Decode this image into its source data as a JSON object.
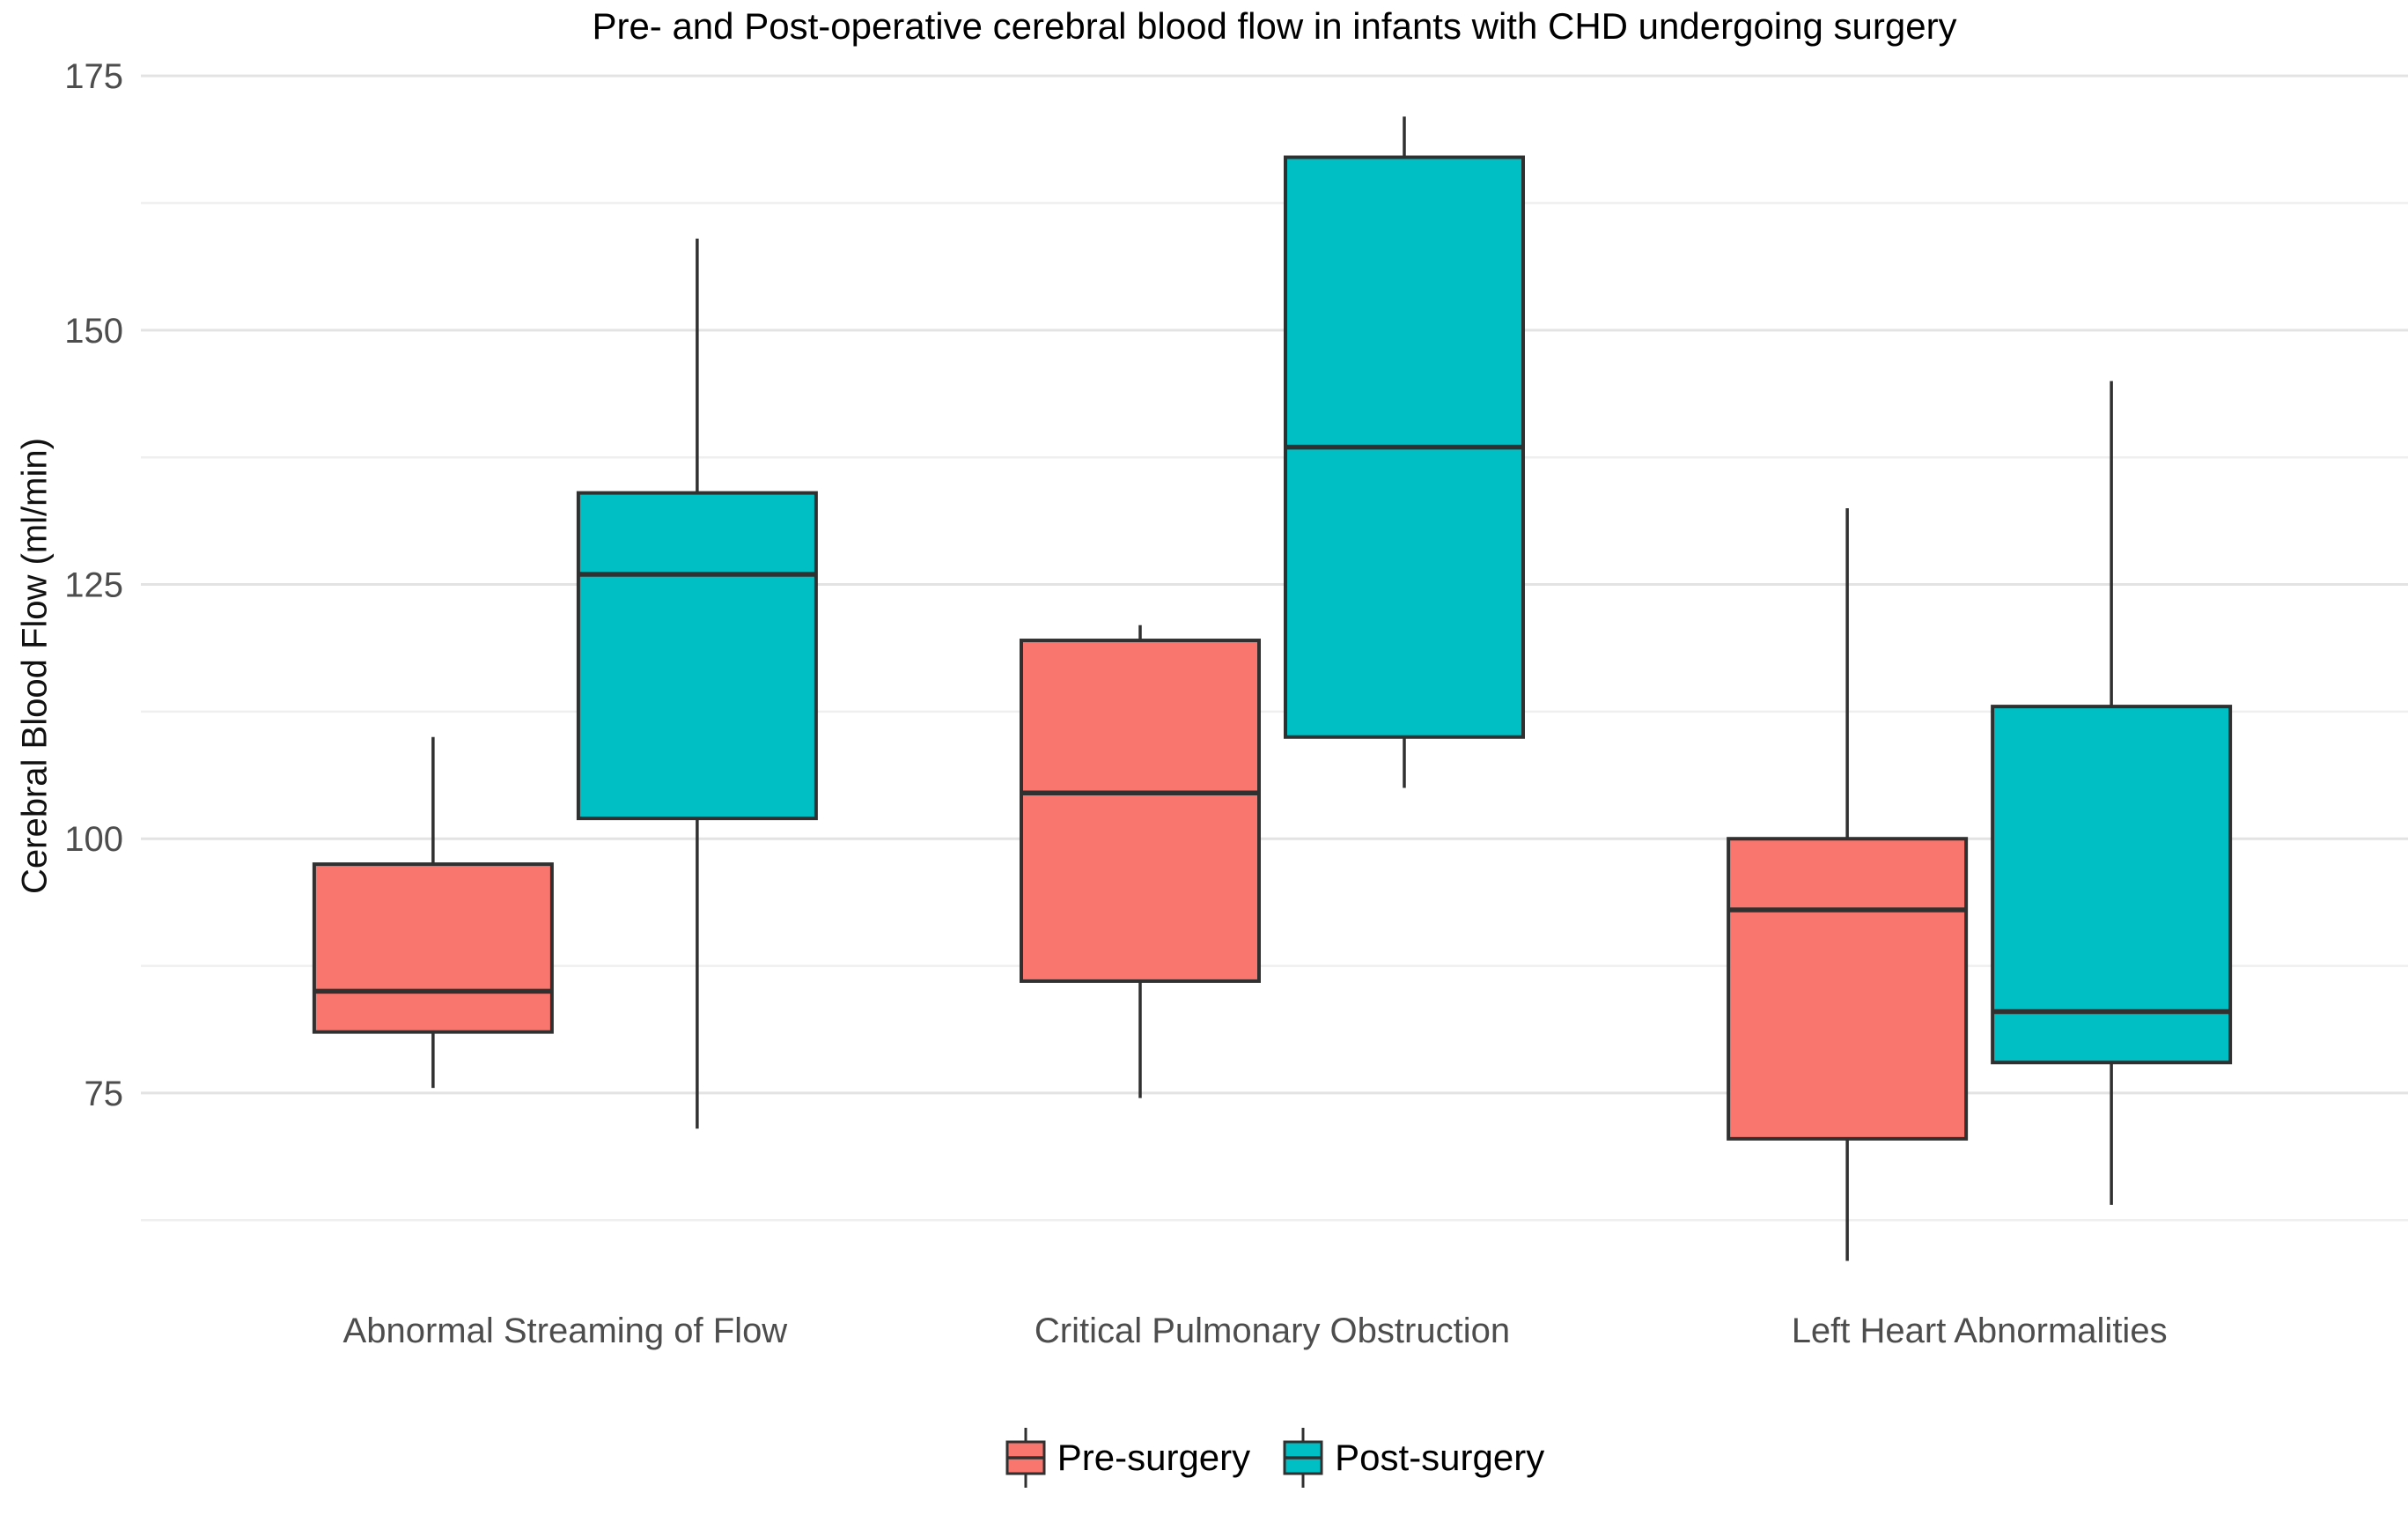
{
  "chart_data": {
    "type": "boxplot",
    "title": "Pre- and Post-operative cerebral blood flow in infants with CHD undergoing surgery",
    "xlabel": "",
    "ylabel": "Cerebral Blood Flow (ml/min)",
    "categories": [
      "Abnormal Streaming of Flow",
      "Critical Pulmonary Obstruction",
      "Left Heart Abnormalities"
    ],
    "series": [
      {
        "name": "Pre-surgery",
        "color": "#F8766D",
        "boxes": [
          {
            "min": 75.5,
            "q1": 81,
            "median": 85,
            "q3": 97.5,
            "max": 110
          },
          {
            "min": 74.5,
            "q1": 86,
            "median": 104.5,
            "q3": 119.5,
            "max": 121
          },
          {
            "min": 58.5,
            "q1": 70.5,
            "median": 93,
            "q3": 100,
            "max": 132.5
          }
        ]
      },
      {
        "name": "Post-surgery",
        "color": "#00BFC4",
        "boxes": [
          {
            "min": 71.5,
            "q1": 102,
            "median": 126,
            "q3": 134,
            "max": 159
          },
          {
            "min": 105,
            "q1": 110,
            "median": 138.5,
            "q3": 167,
            "max": 171
          },
          {
            "min": 64,
            "q1": 78,
            "median": 83,
            "q3": 113,
            "max": 145
          }
        ]
      }
    ],
    "ylim": [
      56.2,
      177.7
    ],
    "yticks": [
      75,
      100,
      125,
      150,
      175
    ],
    "minor_yticks": [
      62.5,
      87.5,
      112.5,
      137.5,
      162.5
    ],
    "grid": true,
    "legend_position": "bottom",
    "colors": {
      "box_outline": "#303030",
      "major_grid": "#E3E3E3",
      "minor_grid": "#EFEFEF",
      "axis_text": "#4D4D4D",
      "title_text": "#000000",
      "background": "#FFFFFF"
    }
  }
}
